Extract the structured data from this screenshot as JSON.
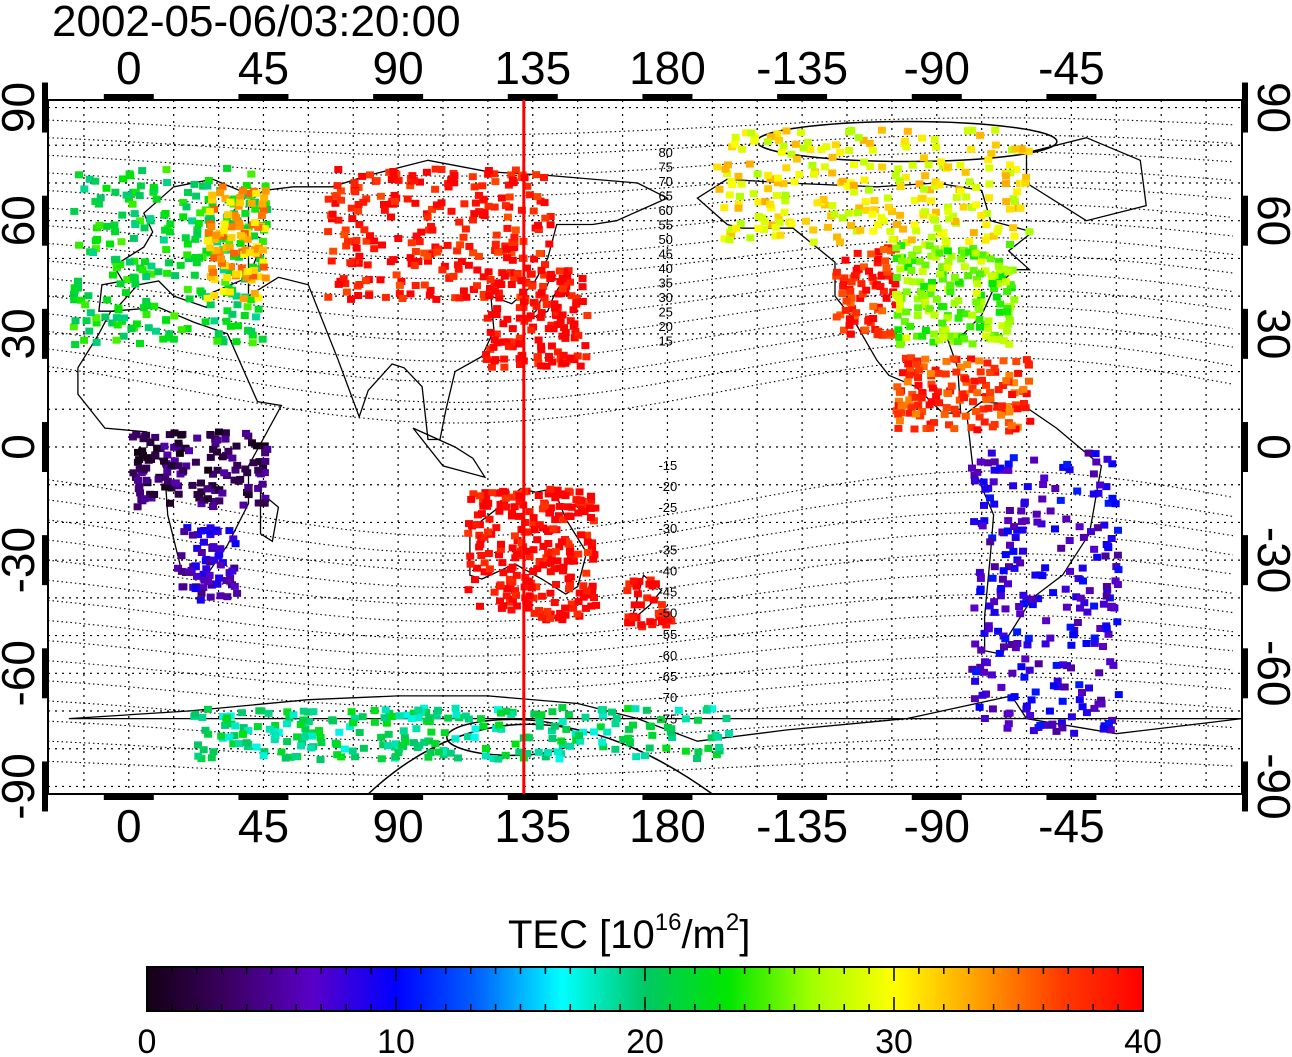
{
  "title": "2002-05-06/03:20:00",
  "top_lon_labels": [
    "0",
    "45",
    "90",
    "135",
    "180",
    "-135",
    "-90",
    "-45"
  ],
  "bottom_lon_labels": [
    "0",
    "45",
    "90",
    "135",
    "180",
    "-135",
    "-90",
    "-45"
  ],
  "left_lat_labels": [
    "90",
    "60",
    "30",
    "0",
    "-30",
    "-60",
    "-90"
  ],
  "right_lat_labels": [
    "90",
    "60",
    "30",
    "0",
    "-30",
    "-60",
    "-90"
  ],
  "maglat_labels_north": [
    "80",
    "75",
    "70",
    "65",
    "60",
    "55",
    "50",
    "45",
    "40",
    "35",
    "30",
    "25",
    "20",
    "15"
  ],
  "maglat_labels_south": [
    "-15",
    "-20",
    "-25",
    "-30",
    "-35",
    "-40",
    "-45",
    "-50",
    "-55",
    "-60",
    "-65",
    "-70",
    "-75"
  ],
  "colorbar": {
    "title": "TEC",
    "unit_prefix": "[10",
    "unit_exp": "16",
    "unit_mid": "/m",
    "unit_exp2": "2",
    "unit_suffix": "]",
    "tick_labels": [
      "0",
      "10",
      "20",
      "30",
      "40"
    ],
    "range": [
      0,
      40
    ],
    "colors": [
      "#140014",
      "#3c0064",
      "#5a00c8",
      "#0000ff",
      "#0064ff",
      "#00ffff",
      "#00c864",
      "#00e600",
      "#a0ff00",
      "#ffff00",
      "#ffa000",
      "#ff3c00",
      "#ff0000"
    ]
  },
  "terminator_line": {
    "lon": 132,
    "color": "#ff0000"
  },
  "map": {
    "lon_range": [
      -27,
      372
    ],
    "lat_range": [
      -92,
      92
    ],
    "grid": "dotted"
  },
  "tec_regions": [
    {
      "name": "europe",
      "lon": [
        -20,
        45
      ],
      "lat": [
        28,
        75
      ],
      "tec": 22
    },
    {
      "name": "europe-east",
      "lon": [
        25,
        45
      ],
      "lat": [
        40,
        70
      ],
      "tec": 33
    },
    {
      "name": "asia-north",
      "lon": [
        65,
        140
      ],
      "lat": [
        40,
        75
      ],
      "tec": 39
    },
    {
      "name": "japan",
      "lon": [
        118,
        152
      ],
      "lat": [
        22,
        48
      ],
      "tec": 40
    },
    {
      "name": "australia",
      "lon": [
        112,
        155
      ],
      "lat": [
        -45,
        -10
      ],
      "tec": 40
    },
    {
      "name": "new-zealand",
      "lon": [
        165,
        180
      ],
      "lat": [
        -48,
        -34
      ],
      "tec": 40
    },
    {
      "name": "canada",
      "lon": [
        195,
        300
      ],
      "lat": [
        55,
        85
      ],
      "tec": 30
    },
    {
      "name": "usa-west",
      "lon": [
        235,
        255
      ],
      "lat": [
        30,
        55
      ],
      "tec": 38
    },
    {
      "name": "usa-east",
      "lon": [
        255,
        295
      ],
      "lat": [
        28,
        55
      ],
      "tec": 26
    },
    {
      "name": "caribbean",
      "lon": [
        255,
        300
      ],
      "lat": [
        5,
        25
      ],
      "tec": 37
    },
    {
      "name": "africa-center",
      "lon": [
        0,
        45
      ],
      "lat": [
        -15,
        5
      ],
      "tec": 3
    },
    {
      "name": "south-africa",
      "lon": [
        15,
        35
      ],
      "lat": [
        -40,
        -20
      ],
      "tec": 7
    },
    {
      "name": "south-america",
      "lon": [
        280,
        330
      ],
      "lat": [
        -75,
        0
      ],
      "tec": 8
    },
    {
      "name": "antarctica",
      "lon": [
        20,
        200
      ],
      "lat": [
        -82,
        -68
      ],
      "tec": 20
    }
  ]
}
